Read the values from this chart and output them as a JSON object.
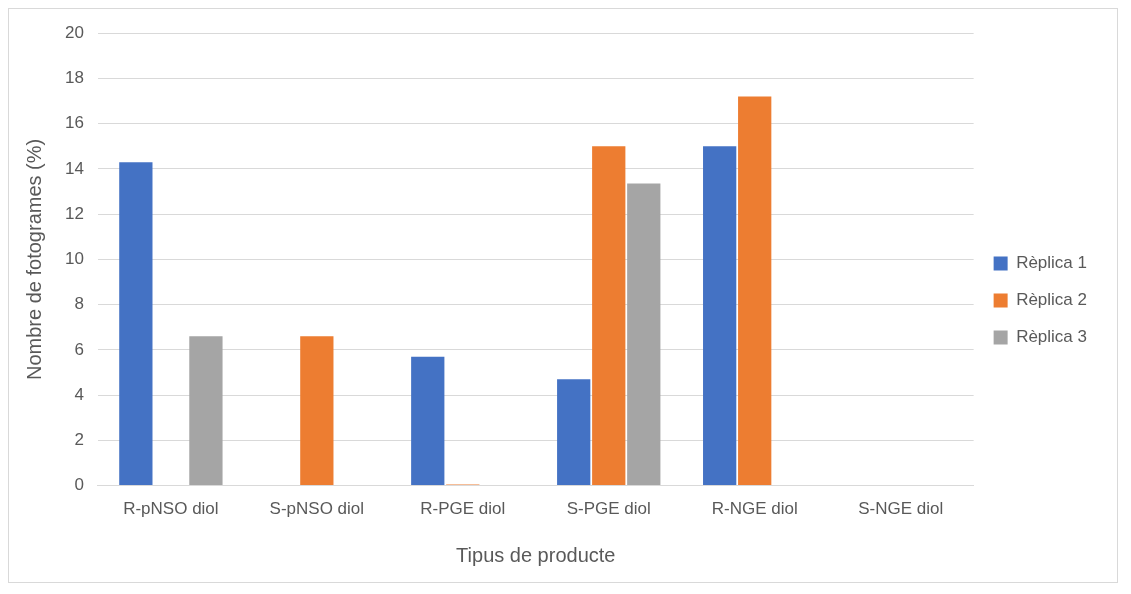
{
  "chart_data": {
    "type": "bar",
    "xlabel": "Tipus de producte",
    "ylabel": "Nombre de fotogrames (%)",
    "categories": [
      "R-pNSO diol",
      "S-pNSO diol",
      "R-PGE diol",
      "S-PGE diol",
      "R-NGE diol",
      "S-NGE diol"
    ],
    "series": [
      {
        "name": "Rèplica 1",
        "color": "#4472c4",
        "values": [
          14.3,
          0,
          5.7,
          4.7,
          15.0,
          0
        ]
      },
      {
        "name": "Rèplica 2",
        "color": "#ed7d31",
        "values": [
          0,
          6.6,
          0.05,
          15.0,
          17.2,
          0
        ]
      },
      {
        "name": "Rèplica 3",
        "color": "#a5a5a5",
        "values": [
          6.6,
          0,
          0,
          13.35,
          0,
          0
        ]
      }
    ],
    "ylim": [
      0,
      20
    ],
    "yticks": [
      0,
      2,
      4,
      6,
      8,
      10,
      12,
      14,
      16,
      18,
      20
    ],
    "grid": "y",
    "legend": "right"
  }
}
